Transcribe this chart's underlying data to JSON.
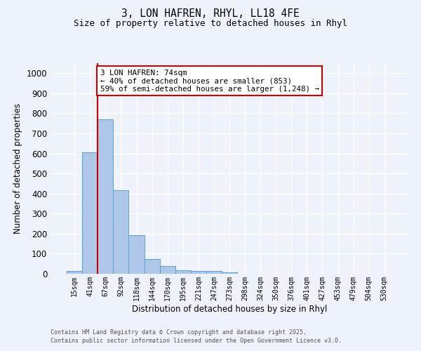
{
  "title_line1": "3, LON HAFREN, RHYL, LL18 4FE",
  "title_line2": "Size of property relative to detached houses in Rhyl",
  "xlabel": "Distribution of detached houses by size in Rhyl",
  "ylabel": "Number of detached properties",
  "bar_labels": [
    "15sqm",
    "41sqm",
    "67sqm",
    "92sqm",
    "118sqm",
    "144sqm",
    "170sqm",
    "195sqm",
    "221sqm",
    "247sqm",
    "273sqm",
    "298sqm",
    "324sqm",
    "350sqm",
    "376sqm",
    "401sqm",
    "427sqm",
    "453sqm",
    "479sqm",
    "504sqm",
    "530sqm"
  ],
  "bar_values": [
    15,
    605,
    770,
    415,
    193,
    75,
    38,
    18,
    14,
    13,
    8,
    0,
    0,
    0,
    0,
    0,
    0,
    0,
    0,
    0,
    0
  ],
  "bar_color": "#aec6e8",
  "bar_edgecolor": "#5a9fd4",
  "vline_x_index": 2,
  "vline_color": "#cc0000",
  "annotation_text": "3 LON HAFREN: 74sqm\n← 40% of detached houses are smaller (853)\n59% of semi-detached houses are larger (1,248) →",
  "annotation_box_color": "#ffffff",
  "annotation_box_edgecolor": "#cc0000",
  "ylim": [
    0,
    1050
  ],
  "yticks": [
    0,
    100,
    200,
    300,
    400,
    500,
    600,
    700,
    800,
    900,
    1000
  ],
  "background_color": "#eef2fb",
  "grid_color": "#ffffff",
  "footer_line1": "Contains HM Land Registry data © Crown copyright and database right 2025.",
  "footer_line2": "Contains public sector information licensed under the Open Government Licence v3.0."
}
